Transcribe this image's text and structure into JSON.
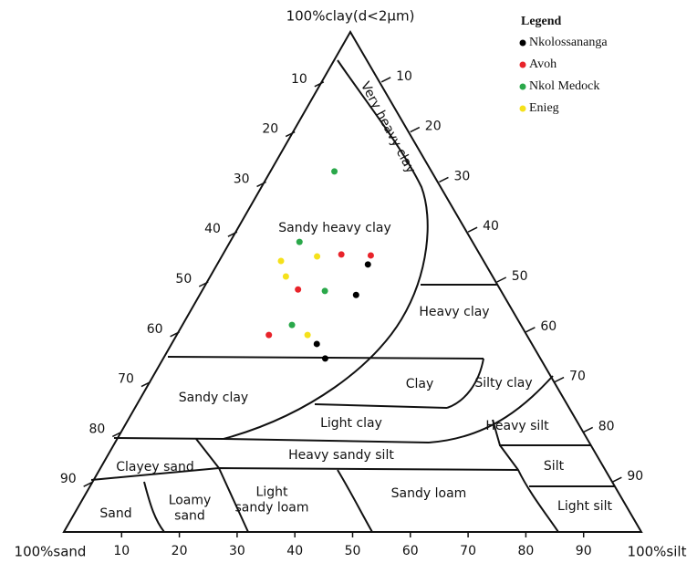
{
  "chart_data": {
    "type": "ternary",
    "corner_labels": {
      "top": "100%clay(d<2μm)",
      "left": "100%sand",
      "right": "100%silt"
    },
    "left_ticks": [
      10,
      20,
      30,
      40,
      50,
      60,
      70,
      80,
      90
    ],
    "right_ticks": [
      10,
      20,
      30,
      40,
      50,
      60,
      70,
      80,
      90
    ],
    "bottom_ticks": [
      10,
      20,
      30,
      40,
      50,
      60,
      70,
      80,
      90
    ],
    "regions": [
      [
        "Very heavy clay"
      ],
      [
        "Sandy heavy clay"
      ],
      [
        "Heavy clay"
      ],
      [
        "Sandy clay"
      ],
      [
        "Clay"
      ],
      [
        "Silty clay"
      ],
      [
        "Light clay"
      ],
      [
        "Heavy silt"
      ],
      [
        "Heavy sandy silt"
      ],
      [
        "Clayey sand"
      ],
      [
        "Silt"
      ],
      [
        "Sand"
      ],
      [
        "Loamy",
        "sand"
      ],
      [
        "Light",
        "sandy loam"
      ],
      [
        "Sandy loam"
      ],
      [
        "Light silt"
      ]
    ],
    "legend_title": "Legend",
    "series": [
      {
        "name": "Nkolossananga",
        "color": "#000000",
        "clay": [
          53.5,
          47.4,
          37.6,
          34.7
        ],
        "silt": [
          25.9,
          26.9,
          25.0,
          27.9
        ]
      },
      {
        "name": "Avoh",
        "color": "#e8232a",
        "clay": [
          55.5,
          55.3,
          48.5,
          39.4
        ],
        "silt": [
          20.3,
          25.5,
          16.3,
          15.8
        ]
      },
      {
        "name": "Nkol Medock",
        "color": "#2aa84a",
        "clay": [
          72.1,
          58.0,
          48.2,
          41.4
        ],
        "silt": [
          10.8,
          11.8,
          21.1,
          18.8
        ]
      },
      {
        "name": "Enieg",
        "color": "#f5e11b",
        "clay": [
          55.1,
          54.2,
          51.1,
          39.4
        ],
        "silt": [
          16.3,
          10.5,
          12.9,
          22.5
        ]
      }
    ]
  }
}
